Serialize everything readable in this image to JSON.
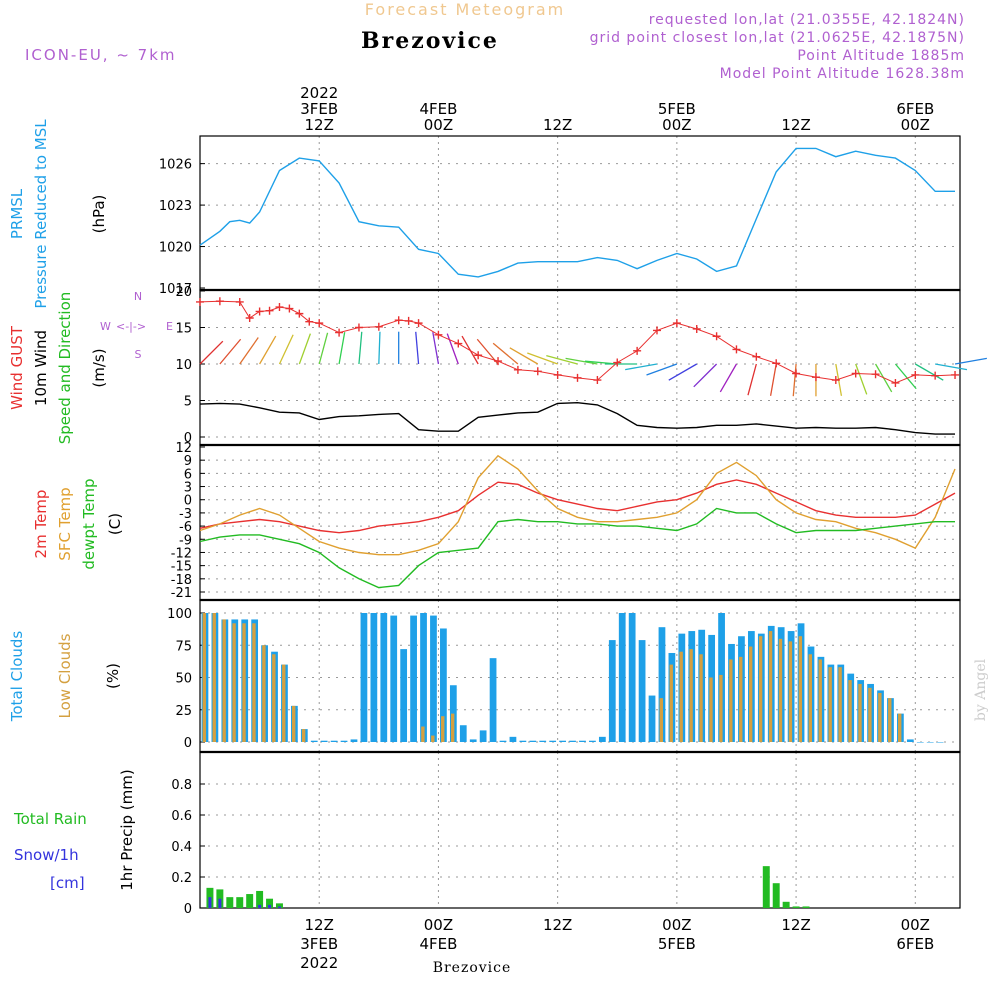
{
  "header": {
    "title": "Forecast Meteogram",
    "station": "Brezovice",
    "model": "ICON-EU, ~ 7km",
    "requested": "requested lon,lat (21.0355E, 42.1824N)",
    "grid": "grid point closest lon,lat (21.0625E, 42.1875N)",
    "altitude": "Point Altitude 1885m",
    "model_altitude": "Model Point Altitude 1628.38m",
    "watermark": "by Angel",
    "bottom_station": "Brezovice"
  },
  "time_axis": {
    "top_labels": [
      {
        "t": 12,
        "lines": [
          "2022",
          "3FEB",
          "12Z"
        ]
      },
      {
        "t": 24,
        "lines": [
          "4FEB",
          "00Z"
        ]
      },
      {
        "t": 36,
        "lines": [
          "12Z"
        ]
      },
      {
        "t": 48,
        "lines": [
          "5FEB",
          "00Z"
        ]
      },
      {
        "t": 60,
        "lines": [
          "12Z"
        ]
      },
      {
        "t": 72,
        "lines": [
          "6FEB",
          "00Z"
        ]
      }
    ],
    "bottom_labels": [
      {
        "t": 12,
        "lines": [
          "12Z",
          "3FEB",
          "2022"
        ]
      },
      {
        "t": 24,
        "lines": [
          "00Z",
          "4FEB"
        ]
      },
      {
        "t": 36,
        "lines": [
          "12Z"
        ]
      },
      {
        "t": 48,
        "lines": [
          "00Z",
          "5FEB"
        ]
      },
      {
        "t": 60,
        "lines": [
          "12Z"
        ]
      },
      {
        "t": 72,
        "lines": [
          "00Z",
          "6FEB"
        ]
      }
    ]
  },
  "panel_labels": {
    "pressure": [
      {
        "text": "PRMSL",
        "color": "#1ea0e8"
      },
      {
        "text": "Pressure Reduced to MSL",
        "color": "#1ea0e8"
      },
      {
        "text": "(hPa)",
        "color": "#000000"
      }
    ],
    "wind": [
      {
        "text": "Wind GUST",
        "color": "#e83030"
      },
      {
        "text": "10m Wind",
        "color": "#000000"
      },
      {
        "text": "Speed and Direction",
        "color": "#22bb22"
      },
      {
        "text": "(m/s)",
        "color": "#000000"
      }
    ],
    "wind_compass": [
      "N",
      "<-|->",
      "S",
      "W",
      "E"
    ],
    "temp": [
      {
        "text": "2m Temp",
        "color": "#e83030"
      },
      {
        "text": "SFC Temp",
        "color": "#e0a030"
      },
      {
        "text": "dewpt Temp",
        "color": "#22bb22"
      },
      {
        "text": "(C)",
        "color": "#000000"
      }
    ],
    "clouds": [
      {
        "text": "Total Clouds",
        "color": "#1ea0e8"
      },
      {
        "text": "Low Clouds",
        "color": "#d4a040"
      },
      {
        "text": "(%)",
        "color": "#000000"
      }
    ],
    "precip_axis": "1hr Precip (mm)",
    "precip_legend": [
      {
        "text": "Total  Rain",
        "color": "#22bb22"
      },
      {
        "text": "Snow/1h",
        "color": "#3333dd"
      },
      {
        "text": "[cm]",
        "color": "#3333dd"
      }
    ]
  },
  "colors": {
    "pressure": "#1ea0e8",
    "gust": "#e83030",
    "wind": "#000000",
    "temp2m": "#e83030",
    "sfc": "#e0a030",
    "dewpt": "#22bb22",
    "total_cloud": "#1ea0e8",
    "low_cloud": "#d4a040",
    "rain": "#22bb22",
    "snow": "#3333dd"
  },
  "chart_data": [
    {
      "type": "line",
      "name": "pressure",
      "ylabel": "Pressure Reduced to MSL (hPa)",
      "ylim": [
        1017,
        1028
      ],
      "yticks": [
        1017,
        1020,
        1023,
        1026
      ],
      "xlim": [
        0,
        76.5
      ],
      "x": [
        0,
        2,
        3,
        4,
        5,
        6,
        8,
        10,
        12,
        14,
        16,
        18,
        20,
        22,
        24,
        26,
        28,
        30,
        32,
        34,
        36,
        38,
        40,
        42,
        44,
        46,
        48,
        50,
        52,
        54,
        56,
        58,
        60,
        62,
        64,
        66,
        68,
        70,
        72,
        74,
        76
      ],
      "values": [
        1020.1,
        1021.1,
        1021.8,
        1021.9,
        1021.7,
        1022.5,
        1025.5,
        1026.4,
        1026.2,
        1024.6,
        1021.8,
        1021.5,
        1021.4,
        1019.8,
        1019.5,
        1018.0,
        1017.8,
        1018.2,
        1018.8,
        1018.9,
        1018.9,
        1018.9,
        1019.2,
        1019.0,
        1018.4,
        1019.0,
        1019.5,
        1019.1,
        1018.2,
        1018.6,
        1022.0,
        1025.4,
        1027.1,
        1027.1,
        1026.5,
        1026.9,
        1026.6,
        1026.4,
        1025.5,
        1024.0,
        1024.0
      ]
    },
    {
      "type": "line",
      "name": "wind",
      "ylabel": "Wind (m/s)",
      "ylim": [
        0,
        20
      ],
      "yticks": [
        0,
        5,
        10,
        15,
        20
      ],
      "gust_x": [
        0,
        2,
        4,
        5,
        6,
        7,
        8,
        9,
        10,
        11,
        12,
        14,
        16,
        18,
        20,
        21,
        22,
        24,
        26,
        28,
        30,
        32,
        34,
        36,
        38,
        40,
        42,
        44,
        46,
        48,
        50,
        52,
        54,
        56,
        58,
        60,
        62,
        64,
        66,
        68,
        70,
        72,
        74,
        76
      ],
      "gust": [
        18.5,
        18.6,
        18.5,
        16.3,
        17.2,
        17.3,
        17.8,
        17.6,
        16.9,
        15.8,
        15.6,
        14.3,
        15.0,
        15.1,
        16.0,
        15.9,
        15.6,
        14.0,
        12.8,
        11.2,
        10.4,
        9.2,
        9.0,
        8.5,
        8.1,
        7.8,
        10.2,
        11.8,
        14.6,
        15.6,
        14.8,
        13.8,
        12.0,
        11.0,
        10.1,
        8.7,
        8.2,
        7.8,
        8.7,
        8.6,
        7.4,
        8.5,
        8.4,
        8.5
      ],
      "speed_x": [
        0,
        2,
        4,
        6,
        8,
        10,
        12,
        14,
        16,
        18,
        20,
        22,
        24,
        26,
        28,
        30,
        32,
        34,
        36,
        38,
        40,
        42,
        44,
        46,
        48,
        50,
        52,
        54,
        56,
        58,
        60,
        62,
        64,
        66,
        68,
        70,
        72,
        74,
        76
      ],
      "speed": [
        4.5,
        4.6,
        4.5,
        4.0,
        3.4,
        3.3,
        2.4,
        2.8,
        2.9,
        3.1,
        3.2,
        1.0,
        0.8,
        0.8,
        2.7,
        3.0,
        3.3,
        3.4,
        4.6,
        4.7,
        4.4,
        3.2,
        1.6,
        1.3,
        1.2,
        1.3,
        1.6,
        1.6,
        1.8,
        1.5,
        1.2,
        1.3,
        1.2,
        1.2,
        1.3,
        1.0,
        0.6,
        0.4,
        0.4
      ],
      "barb_x": [
        0,
        2,
        4,
        6,
        8,
        10,
        12,
        14,
        16,
        18,
        20,
        22,
        24,
        26,
        28,
        30,
        32,
        34,
        36,
        38,
        40,
        42,
        44,
        46,
        48,
        50,
        52,
        54,
        56,
        58,
        60,
        62,
        64,
        66,
        68,
        70,
        72,
        74,
        76
      ],
      "barb_dir": [
        135,
        140,
        145,
        150,
        155,
        160,
        165,
        170,
        175,
        178,
        180,
        185,
        190,
        200,
        210,
        220,
        230,
        240,
        250,
        255,
        260,
        265,
        270,
        280,
        290,
        300,
        315,
        330,
        345,
        350,
        355,
        0,
        10,
        20,
        30,
        40,
        60,
        80,
        100
      ]
    },
    {
      "type": "line",
      "name": "temperature",
      "ylabel": "Temperature (C)",
      "ylim": [
        -21,
        12
      ],
      "yticks": [
        -21,
        -18,
        -15,
        -12,
        -9,
        -6,
        -3,
        0,
        3,
        6,
        9,
        12
      ],
      "x": [
        0,
        2,
        4,
        6,
        8,
        10,
        12,
        14,
        16,
        18,
        20,
        22,
        24,
        26,
        28,
        30,
        32,
        34,
        36,
        38,
        40,
        42,
        44,
        46,
        48,
        50,
        52,
        54,
        56,
        58,
        60,
        62,
        64,
        66,
        68,
        70,
        72,
        74,
        76
      ],
      "t2m": [
        -6.5,
        -5.5,
        -5.0,
        -4.5,
        -5.0,
        -6.0,
        -7.0,
        -7.5,
        -7.0,
        -6.0,
        -5.5,
        -5.0,
        -4.0,
        -2.5,
        1.0,
        4.0,
        3.5,
        1.5,
        0.0,
        -1.0,
        -2.0,
        -2.5,
        -1.5,
        -0.5,
        0.0,
        1.5,
        3.5,
        4.5,
        3.5,
        1.5,
        -0.5,
        -2.5,
        -3.5,
        -4.0,
        -4.0,
        -4.0,
        -3.5,
        -1.0,
        1.5
      ],
      "sfc": [
        -7.0,
        -5.5,
        -3.5,
        -2.0,
        -3.5,
        -6.5,
        -9.5,
        -11.0,
        -12.0,
        -12.5,
        -12.5,
        -11.5,
        -10.0,
        -5.0,
        5.0,
        10.0,
        7.0,
        2.0,
        -2.0,
        -4.0,
        -5.0,
        -5.0,
        -4.5,
        -4.0,
        -3.0,
        0.0,
        6.0,
        8.5,
        5.5,
        0.0,
        -3.0,
        -4.5,
        -5.0,
        -6.5,
        -7.5,
        -9.0,
        -11.0,
        -4.0,
        7.0
      ],
      "dewpt": [
        -9.5,
        -8.5,
        -8.0,
        -8.0,
        -9.0,
        -10.0,
        -12.0,
        -15.5,
        -18.0,
        -20.0,
        -19.5,
        -15.0,
        -12.0,
        -11.5,
        -11.0,
        -5.0,
        -4.5,
        -5.0,
        -5.0,
        -5.5,
        -5.5,
        -6.0,
        -6.0,
        -6.5,
        -7.0,
        -5.5,
        -2.0,
        -3.0,
        -3.0,
        -5.5,
        -7.5,
        -7.0,
        -7.0,
        -7.0,
        -6.5,
        -6.0,
        -5.5,
        -5.0,
        -5.0
      ]
    },
    {
      "type": "bar",
      "name": "clouds",
      "ylabel": "Clouds (%)",
      "ylim": [
        0,
        100
      ],
      "yticks": [
        0,
        25,
        50,
        75,
        100
      ],
      "total": [
        100,
        100,
        95,
        95,
        95,
        95,
        75,
        70,
        60,
        28,
        10,
        1,
        1,
        1,
        1,
        2,
        100,
        100,
        100,
        98,
        72,
        98,
        100,
        98,
        88,
        44,
        13,
        2,
        9,
        65,
        1,
        4,
        1,
        1,
        1,
        1,
        1,
        1,
        1,
        1,
        4,
        79,
        100,
        100,
        79,
        36,
        89,
        69,
        84,
        86,
        87,
        83,
        100,
        76,
        82,
        86,
        84,
        90,
        89,
        86,
        92,
        74,
        66,
        60,
        60,
        53,
        48,
        45,
        40,
        34,
        22,
        2,
        0,
        0,
        0
      ],
      "low": [
        100,
        100,
        95,
        92,
        92,
        92,
        75,
        68,
        60,
        28,
        10,
        0,
        0,
        0,
        0,
        0,
        0,
        0,
        0,
        0,
        0,
        0,
        12,
        5,
        20,
        22,
        0,
        0,
        0,
        0,
        0,
        0,
        0,
        0,
        0,
        0,
        0,
        0,
        0,
        0,
        0,
        0,
        0,
        0,
        0,
        0,
        34,
        60,
        70,
        72,
        68,
        50,
        52,
        64,
        66,
        74,
        82,
        86,
        80,
        78,
        82,
        68,
        64,
        58,
        58,
        48,
        45,
        42,
        38,
        34,
        22,
        0,
        0,
        0,
        0
      ]
    },
    {
      "type": "bar",
      "name": "precip",
      "ylabel": "1hr Precip (mm)",
      "ylim": [
        0,
        1
      ],
      "yticks": [
        0,
        0.2,
        0.4,
        0.6,
        0.8
      ],
      "rain_x": [
        1,
        2,
        3,
        4,
        5,
        6,
        7,
        8,
        57,
        58,
        59,
        60,
        61
      ],
      "rain": [
        0.13,
        0.12,
        0.07,
        0.07,
        0.09,
        0.11,
        0.06,
        0.03,
        0.27,
        0.16,
        0.04,
        0.01,
        0.01
      ],
      "snow_x": [
        1,
        2,
        6,
        7,
        8
      ],
      "snow": [
        0.07,
        0.06,
        0.02,
        0.02,
        0.01
      ]
    }
  ]
}
